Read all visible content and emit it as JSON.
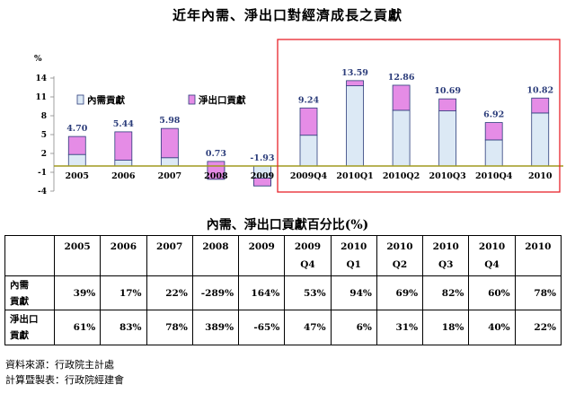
{
  "chart_data": {
    "type": "bar",
    "stacked": true,
    "title": "近年內需、淨出口對經濟成長之貢獻",
    "ylabel": "%",
    "ylim": [
      -4,
      14
    ],
    "yticks": [
      -4,
      -1,
      2,
      5,
      8,
      11,
      14
    ],
    "categories": [
      "2005",
      "2006",
      "2007",
      "2008",
      "2009",
      "2009Q4",
      "2010Q1",
      "2010Q2",
      "2010Q3",
      "2010Q4",
      "2010"
    ],
    "totals": [
      4.7,
      5.44,
      5.98,
      0.73,
      -1.93,
      9.24,
      13.59,
      12.86,
      10.69,
      6.92,
      10.82
    ],
    "total_labels": [
      "4.70",
      "5.44",
      "5.98",
      "0.73",
      "-1.93",
      "9.24",
      "13.59",
      "12.86",
      "10.69",
      "6.92",
      "10.82"
    ],
    "series": [
      {
        "name": "內需貢獻",
        "color": "#dce9f5",
        "values": [
          1.83,
          0.92,
          1.32,
          -2.11,
          -3.17,
          4.9,
          12.77,
          8.87,
          8.77,
          4.15,
          8.44
        ]
      },
      {
        "name": "淨出口貢獻",
        "color": "#e58ce6",
        "values": [
          2.87,
          4.52,
          4.66,
          2.84,
          1.24,
          4.34,
          0.82,
          3.99,
          1.92,
          2.77,
          2.38
        ]
      }
    ],
    "highlight": {
      "from": "2009Q4",
      "to": "2010",
      "color": "#e8242b"
    },
    "legend": "top-left"
  },
  "table": {
    "title": "內需、淨出口貢獻百分比(%)",
    "headers": [
      {
        "line1": "2005",
        "line2": ""
      },
      {
        "line1": "2006",
        "line2": ""
      },
      {
        "line1": "2007",
        "line2": ""
      },
      {
        "line1": "2008",
        "line2": ""
      },
      {
        "line1": "2009",
        "line2": ""
      },
      {
        "line1": "2009",
        "line2": "Q4"
      },
      {
        "line1": "2010",
        "line2": "Q1"
      },
      {
        "line1": "2010",
        "line2": "Q2"
      },
      {
        "line1": "2010",
        "line2": "Q3"
      },
      {
        "line1": "2010",
        "line2": "Q4"
      },
      {
        "line1": "2010",
        "line2": ""
      }
    ],
    "rows": [
      {
        "label1": "內需",
        "label2": "貢獻",
        "values": [
          "39%",
          "17%",
          "22%",
          "-289%",
          "164%",
          "53%",
          "94%",
          "69%",
          "82%",
          "60%",
          "78%"
        ]
      },
      {
        "label1": "淨出口",
        "label2": "貢獻",
        "values": [
          "61%",
          "83%",
          "78%",
          "389%",
          "-65%",
          "47%",
          "6%",
          "31%",
          "18%",
          "40%",
          "22%"
        ]
      }
    ]
  },
  "footer": {
    "source": "資料來源：行政院主計處",
    "compiled": "計算暨製表：行政院經建會"
  }
}
